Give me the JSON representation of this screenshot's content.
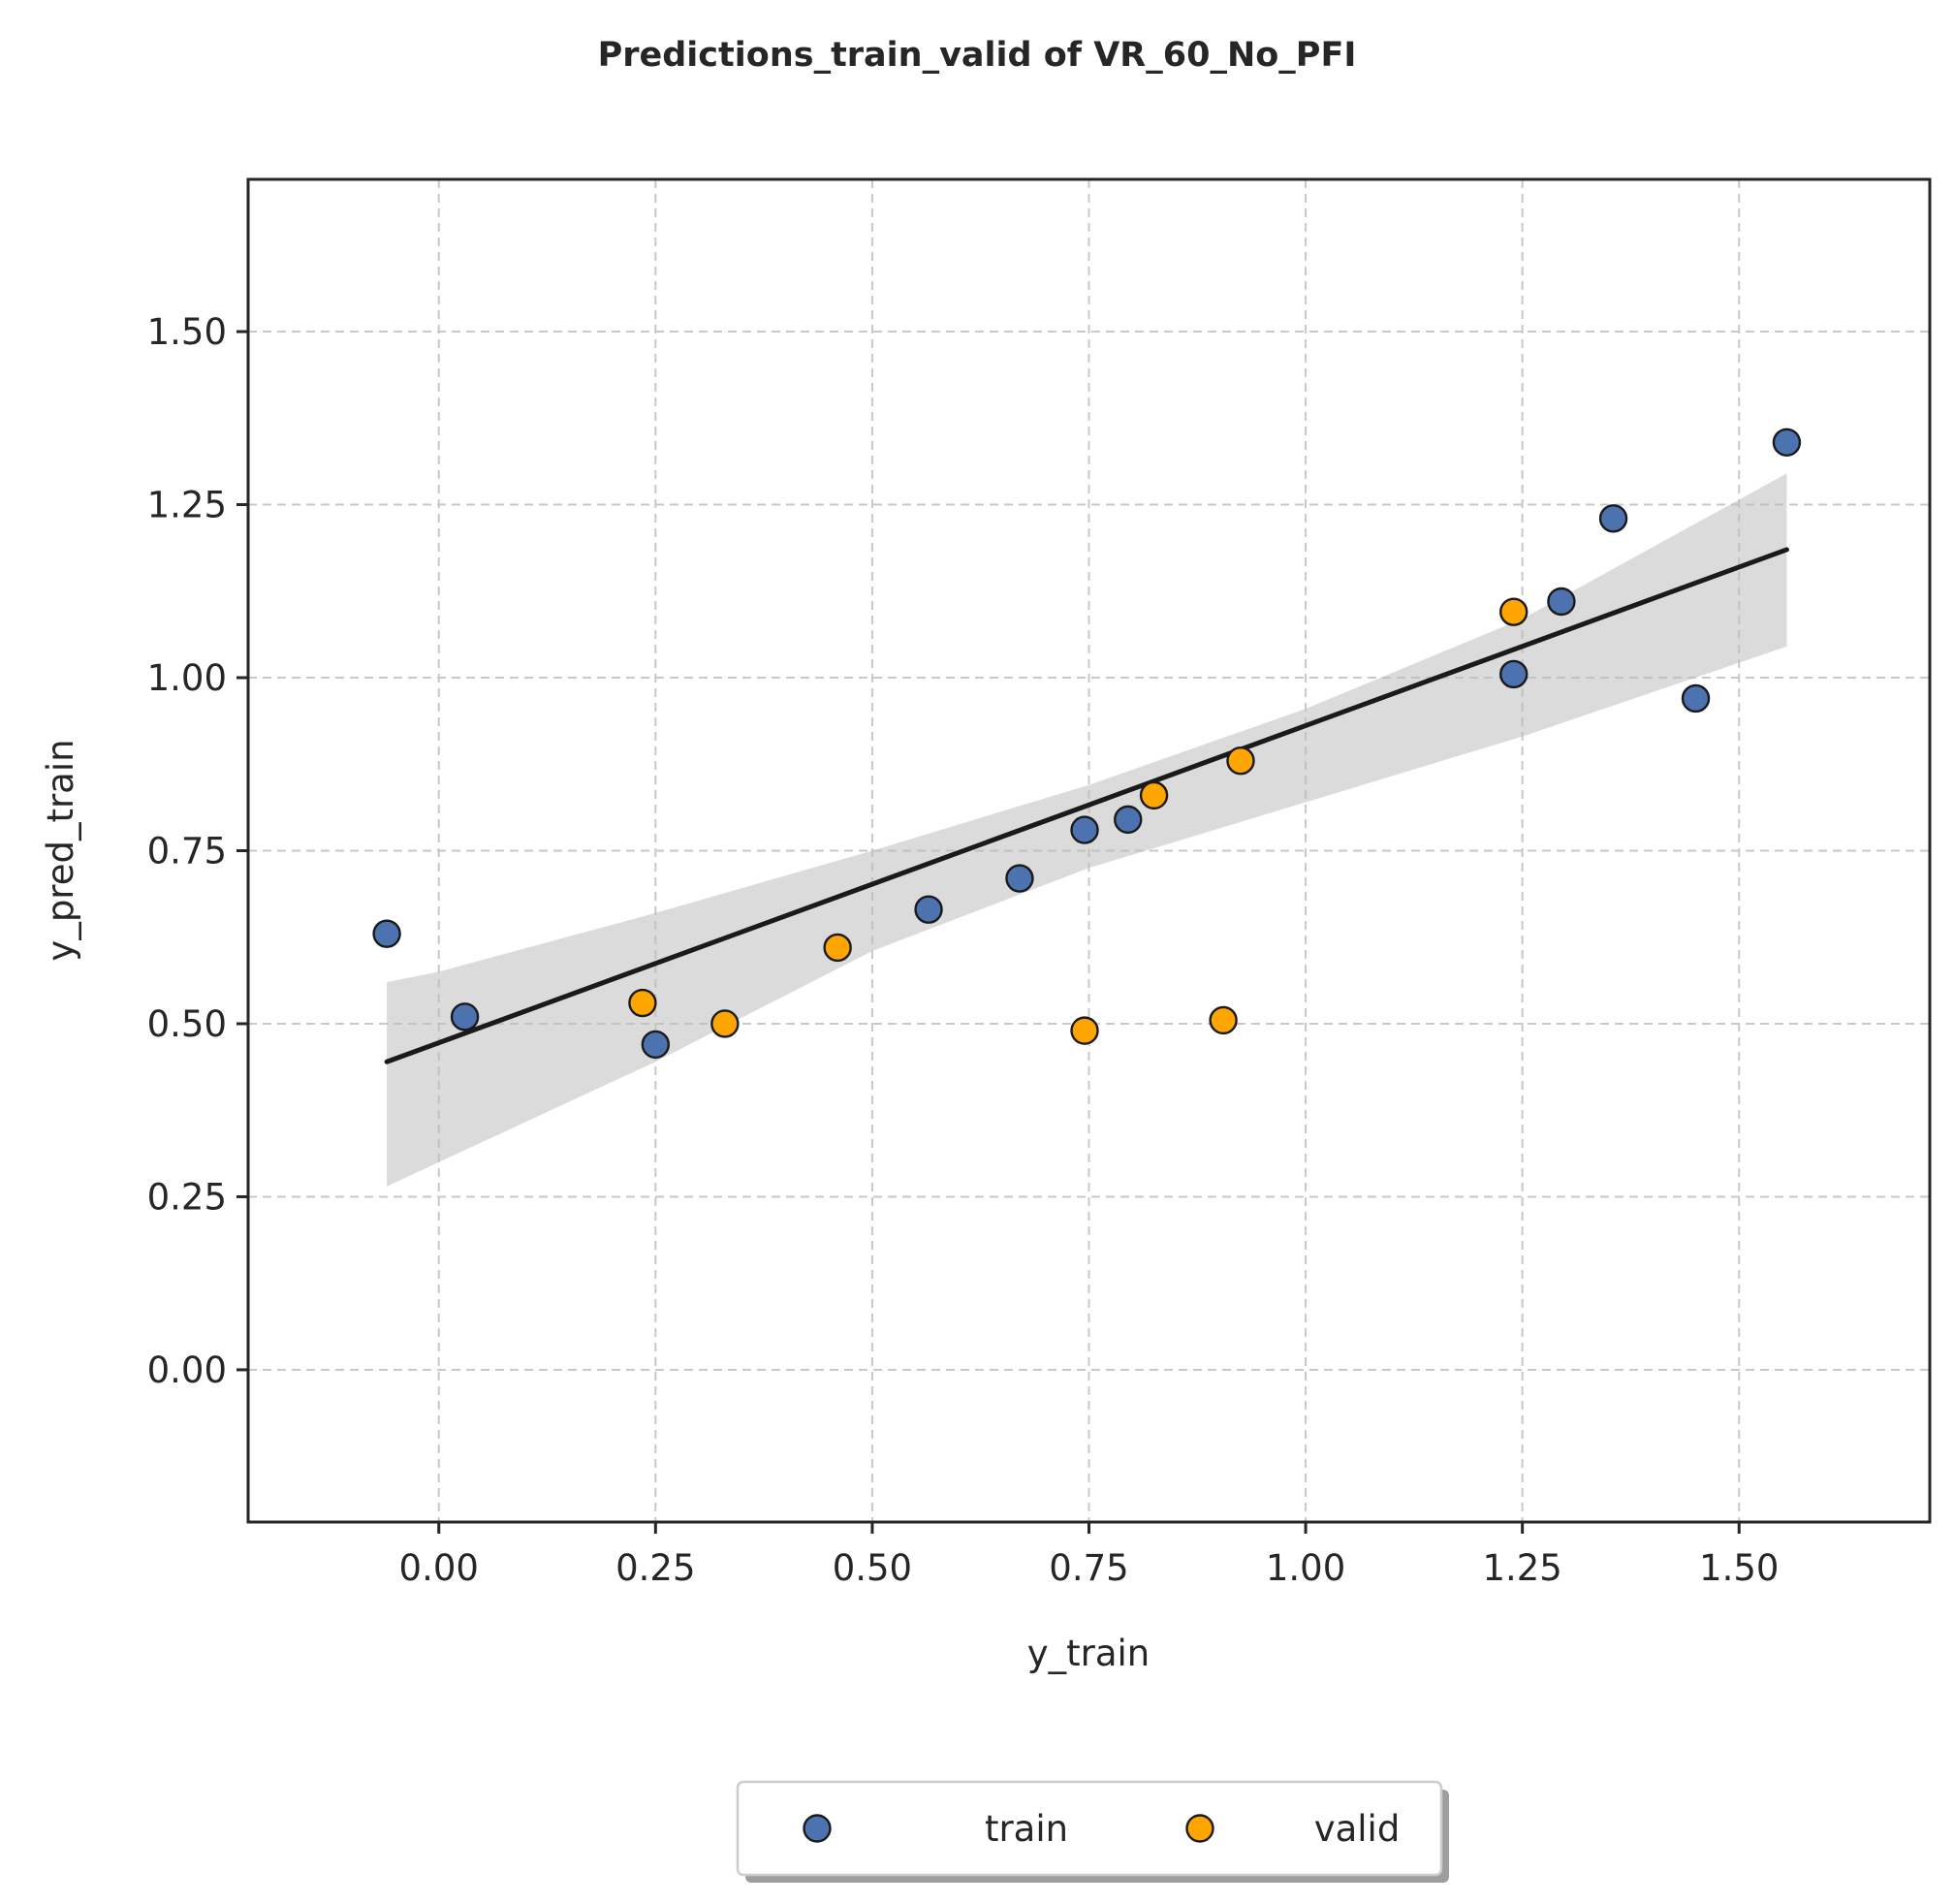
{
  "chart_data": {
    "type": "scatter",
    "title": "Predictions_train_valid of VR_60_No_PFI",
    "xlabel": "y_train",
    "ylabel": "y_pred_train",
    "xlim": [
      -0.22,
      1.72
    ],
    "ylim": [
      -0.22,
      1.72
    ],
    "xticks": [
      "0.00",
      "0.25",
      "0.50",
      "0.75",
      "1.00",
      "1.25",
      "1.50"
    ],
    "yticks": [
      "0.00",
      "0.25",
      "0.50",
      "0.75",
      "1.00",
      "1.25",
      "1.50"
    ],
    "grid": true,
    "legend_position": "bottom-center",
    "series": [
      {
        "name": "train",
        "color": "#4c72b0",
        "points": [
          [
            -0.06,
            0.63
          ],
          [
            0.03,
            0.51
          ],
          [
            0.25,
            0.47
          ],
          [
            0.565,
            0.665
          ],
          [
            0.67,
            0.71
          ],
          [
            0.745,
            0.78
          ],
          [
            0.795,
            0.795
          ],
          [
            1.24,
            1.005
          ],
          [
            1.295,
            1.11
          ],
          [
            1.355,
            1.23
          ],
          [
            1.45,
            0.97
          ],
          [
            1.555,
            1.34
          ]
        ]
      },
      {
        "name": "valid",
        "color": "#ffa500",
        "points": [
          [
            0.235,
            0.53
          ],
          [
            0.33,
            0.5
          ],
          [
            0.46,
            0.61
          ],
          [
            0.745,
            0.49
          ],
          [
            0.825,
            0.83
          ],
          [
            0.905,
            0.505
          ],
          [
            0.925,
            0.88
          ],
          [
            1.24,
            1.095
          ]
        ]
      }
    ],
    "fit_line": {
      "color": "#1a1a1a",
      "x": [
        -0.06,
        1.555
      ],
      "y": [
        0.445,
        1.185
      ]
    },
    "confidence_band": {
      "color": "#bdbdbd",
      "x": [
        -0.06,
        0.0,
        0.25,
        0.5,
        0.75,
        1.0,
        1.25,
        1.555
      ],
      "upper": [
        0.56,
        0.575,
        0.66,
        0.75,
        0.845,
        0.955,
        1.085,
        1.295
      ],
      "lower": [
        0.265,
        0.3,
        0.445,
        0.605,
        0.725,
        0.82,
        0.915,
        1.045
      ]
    }
  }
}
